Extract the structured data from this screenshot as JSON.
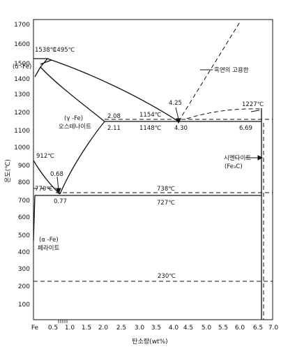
{
  "diagram": {
    "y_axis": {
      "label": "온도(℃)",
      "ticks": [
        "1700",
        "1600",
        "1500",
        "1400",
        "1300",
        "1200",
        "1100",
        "1000",
        "900",
        "800",
        "700",
        "600",
        "500",
        "400",
        "300",
        "200",
        "100"
      ]
    },
    "x_axis": {
      "label": "탄소량(wt%)",
      "ticks": [
        "Fe",
        "0.5",
        "1.0",
        "1.5",
        "2.0",
        "2.5",
        "3.0",
        "3.5",
        "4.0",
        "4.5",
        "5.0",
        "5.5",
        "6.0",
        "6.5",
        "7.0"
      ]
    },
    "labels": {
      "t1538": "1538℃",
      "t1495": "1495℃",
      "delta_fe": "(δ -Fe)",
      "graphite_line": "흑연의 고용한",
      "c425": "4.25",
      "t1227": "1227℃",
      "gamma_fe": "(γ -Fe)",
      "austenite": "오스테나이트",
      "c208": "2.08",
      "t1154": "1154℃",
      "c211": "2.11",
      "t1148": "1148℃",
      "c430": "4.30",
      "c669": "6.69",
      "t912": "912℃",
      "c068": "0.68",
      "cementite": "시멘타이트",
      "fe3c": "(Fe₃C)",
      "t770": "770℃",
      "t738": "738℃",
      "c077": "0.77",
      "t727": "727℃",
      "alpha_fe": "(α -Fe)",
      "ferrite": "페라이트",
      "t230": "230℃"
    }
  }
}
